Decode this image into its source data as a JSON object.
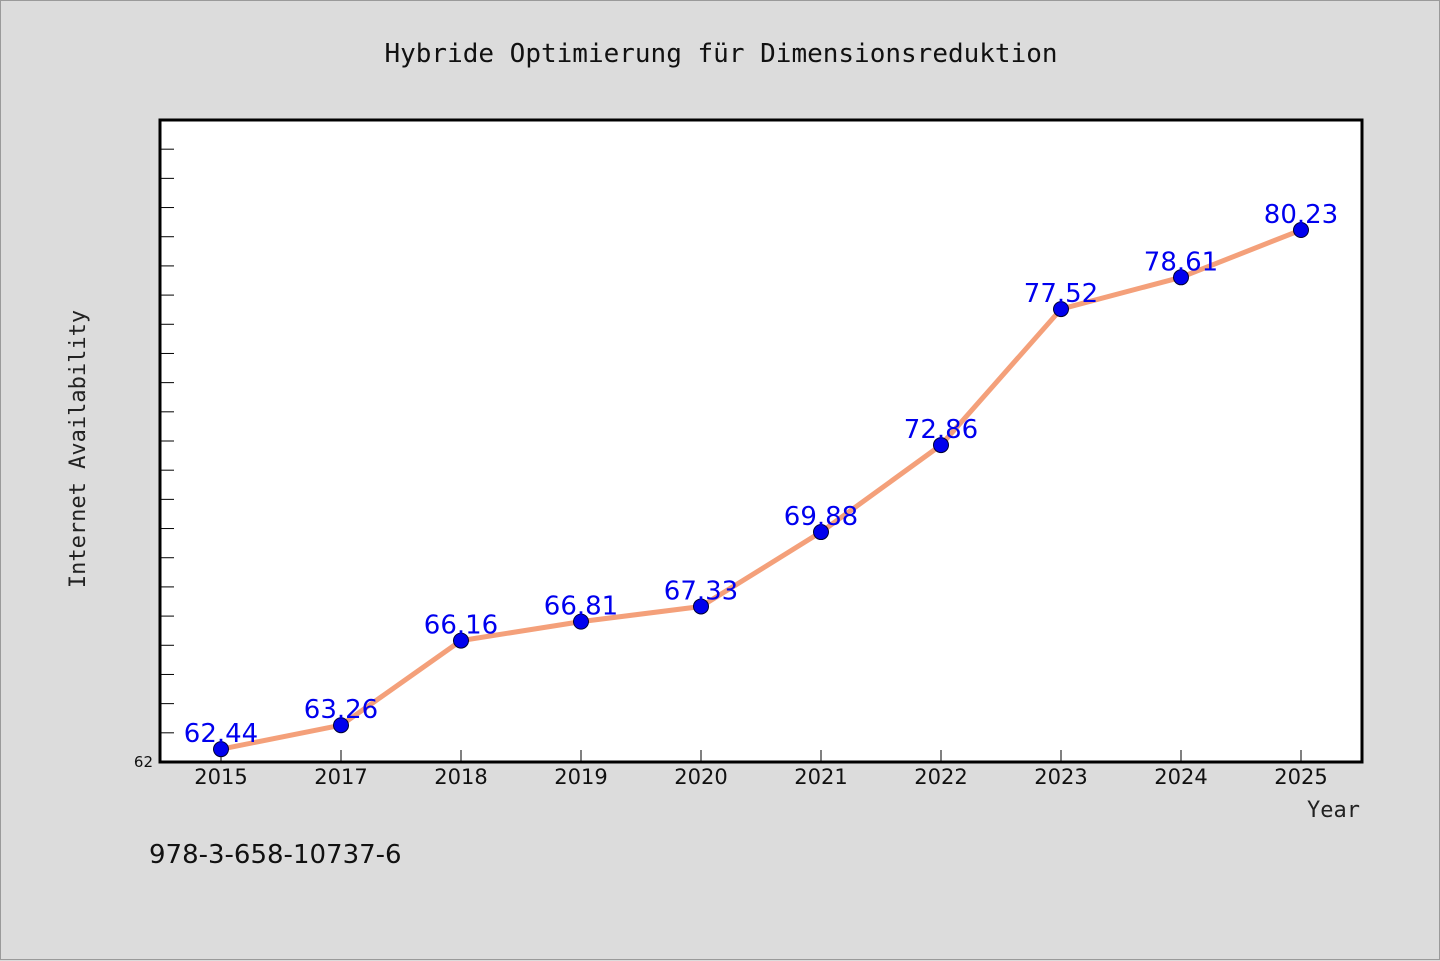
{
  "footer_text": "978-3-658-10737-6",
  "colors": {
    "background": "#dcdcdc",
    "plot_background": "#ffffff",
    "line": "#f4a07a",
    "marker": "#0000ee",
    "data_label": "#0000ee"
  },
  "chart_data": {
    "type": "line",
    "title": "Hybride Optimierung für Dimensionsreduktion",
    "xlabel": "Year",
    "ylabel": "Internet Availability",
    "categories": [
      "2015",
      "2017",
      "2018",
      "2019",
      "2020",
      "2021",
      "2022",
      "2023",
      "2024",
      "2025"
    ],
    "values": [
      62.44,
      63.26,
      66.16,
      66.81,
      67.33,
      69.88,
      72.86,
      77.52,
      78.61,
      80.23
    ],
    "data_labels": [
      "62.44",
      "63.26",
      "66.16",
      "66.81",
      "67.33",
      "69.88",
      "72.86",
      "77.52",
      "78.61",
      "80.23"
    ],
    "ylim": [
      62,
      84
    ],
    "y_tick_labels": [
      "62"
    ],
    "grid": false,
    "legend": "none"
  }
}
